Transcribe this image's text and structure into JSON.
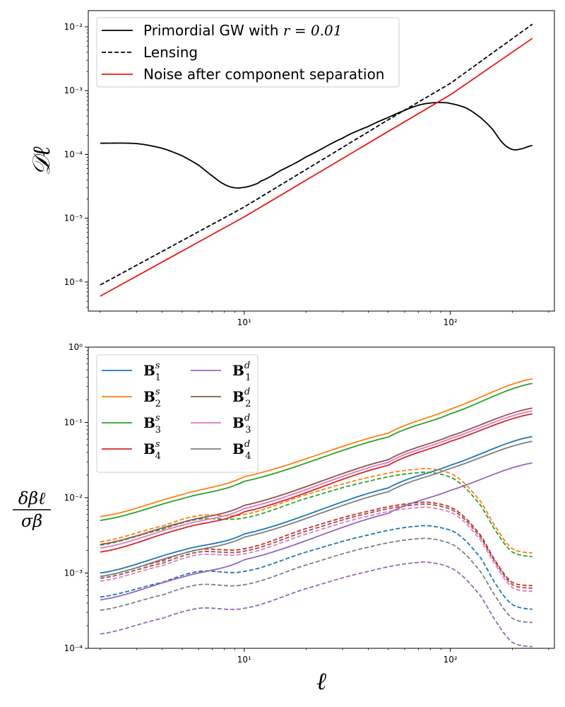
{
  "chart_data": [
    {
      "type": "line",
      "xscale": "log",
      "yscale": "log",
      "xlim": [
        1.75,
        320
      ],
      "ylim": [
        3.5e-07,
        0.018
      ],
      "xlabel": "",
      "ylabel": "𝒟ℓ",
      "x_ticks": [
        {
          "value": 10,
          "label": "10¹"
        },
        {
          "value": 100,
          "label": "10²"
        }
      ],
      "y_ticks": [
        {
          "value": 1e-06,
          "label": "10⁻⁶"
        },
        {
          "value": 1e-05,
          "label": "10⁻⁵"
        },
        {
          "value": 0.0001,
          "label": "10⁻⁴"
        },
        {
          "value": 0.001,
          "label": "10⁻³"
        },
        {
          "value": 0.01,
          "label": "10⁻²"
        }
      ],
      "legend_position": "top-left",
      "series": [
        {
          "name": "Primordial GW with r = 0.01",
          "legend_prefix": "Primordial GW with ",
          "legend_math": "r = 0.01",
          "color": "#000000",
          "dash": "solid",
          "points": [
            [
              2,
              0.00015
            ],
            [
              3,
              0.000148
            ],
            [
              4,
              0.000125
            ],
            [
              5,
              9.5e-05
            ],
            [
              6,
              6.8e-05
            ],
            [
              7,
              4.6e-05
            ],
            [
              8,
              3.4e-05
            ],
            [
              9,
              3e-05
            ],
            [
              10,
              3.05e-05
            ],
            [
              11,
              3.3e-05
            ],
            [
              12,
              3.8e-05
            ],
            [
              15,
              5.6e-05
            ],
            [
              20,
              9.2e-05
            ],
            [
              30,
              0.00018
            ],
            [
              40,
              0.000275
            ],
            [
              50,
              0.00038
            ],
            [
              60,
              0.00049
            ],
            [
              70,
              0.00059
            ],
            [
              80,
              0.00064
            ],
            [
              90,
              0.00065
            ],
            [
              100,
              0.00063
            ],
            [
              120,
              0.00053
            ],
            [
              140,
              0.00038
            ],
            [
              160,
              0.00025
            ],
            [
              180,
              0.00015
            ],
            [
              200,
              0.00012
            ],
            [
              220,
              0.000122
            ],
            [
              250,
              0.000138
            ]
          ]
        },
        {
          "name": "Lensing",
          "color": "#000000",
          "dash": "dashed",
          "points": [
            [
              2,
              9e-07
            ],
            [
              10,
              1.5e-05
            ],
            [
              50,
              0.00035
            ],
            [
              100,
              0.0013
            ],
            [
              250,
              0.011
            ]
          ]
        },
        {
          "name": "Noise after component separation",
          "color": "#e8170f",
          "dash": "solid",
          "points": [
            [
              2,
              6e-07
            ],
            [
              10,
              1.05e-05
            ],
            [
              50,
              0.00023
            ],
            [
              100,
              0.00086
            ],
            [
              250,
              0.0066
            ]
          ]
        }
      ]
    },
    {
      "type": "line",
      "xscale": "log",
      "yscale": "log",
      "xlim": [
        1.75,
        320
      ],
      "ylim": [
        0.0001,
        1
      ],
      "xlabel": "ℓ",
      "ylabel": "δβℓ/σβ",
      "ylabel_num": "δβℓ",
      "ylabel_den": "σβ",
      "x_ticks": [
        {
          "value": 10,
          "label": "10¹"
        },
        {
          "value": 100,
          "label": "10²"
        }
      ],
      "y_ticks": [
        {
          "value": 0.0001,
          "label": "10⁻⁴"
        },
        {
          "value": 0.001,
          "label": "10⁻³"
        },
        {
          "value": 0.01,
          "label": "10⁻²"
        },
        {
          "value": 0.1,
          "label": "10⁻¹"
        },
        {
          "value": 1,
          "label": "10⁰"
        }
      ],
      "legend_position": "top-left",
      "legend_columns": 2,
      "series": [
        {
          "name": "B₁ˢ",
          "base": "B",
          "sub": "1",
          "sup": "s",
          "color": "#1f77b4",
          "solid": [
            [
              2,
              0.001
            ],
            [
              5,
              0.002
            ],
            [
              10,
              0.0033
            ],
            [
              50,
              0.0135
            ],
            [
              100,
              0.027
            ],
            [
              250,
              0.065
            ]
          ],
          "dashed": [
            [
              2,
              0.00048
            ],
            [
              4,
              0.00075
            ],
            [
              6,
              0.00105
            ],
            [
              10,
              0.00105
            ],
            [
              20,
              0.0019
            ],
            [
              40,
              0.0032
            ],
            [
              70,
              0.0042
            ],
            [
              90,
              0.004
            ],
            [
              110,
              0.0032
            ],
            [
              140,
              0.0016
            ],
            [
              170,
              0.00065
            ],
            [
              200,
              0.00038
            ],
            [
              250,
              0.00033
            ]
          ]
        },
        {
          "name": "B₂ˢ",
          "base": "B",
          "sub": "2",
          "sup": "s",
          "color": "#ff7f0e",
          "solid": [
            [
              2,
              0.0056
            ],
            [
              5,
              0.011
            ],
            [
              10,
              0.019
            ],
            [
              50,
              0.072
            ],
            [
              100,
              0.15
            ],
            [
              250,
              0.38
            ]
          ],
          "dashed": [
            [
              2,
              0.0026
            ],
            [
              4,
              0.0042
            ],
            [
              6,
              0.0058
            ],
            [
              10,
              0.006
            ],
            [
              20,
              0.011
            ],
            [
              40,
              0.0185
            ],
            [
              70,
              0.024
            ],
            [
              90,
              0.023
            ],
            [
              110,
              0.018
            ],
            [
              140,
              0.009
            ],
            [
              170,
              0.0037
            ],
            [
              200,
              0.0021
            ],
            [
              250,
              0.00185
            ]
          ]
        },
        {
          "name": "B₃ˢ",
          "base": "B",
          "sub": "3",
          "sup": "s",
          "color": "#2ca02c",
          "solid": [
            [
              2,
              0.005
            ],
            [
              5,
              0.0097
            ],
            [
              10,
              0.0165
            ],
            [
              50,
              0.064
            ],
            [
              100,
              0.13
            ],
            [
              250,
              0.33
            ]
          ],
          "dashed": [
            [
              2,
              0.00235
            ],
            [
              4,
              0.0038
            ],
            [
              6,
              0.0052
            ],
            [
              10,
              0.0054
            ],
            [
              20,
              0.0098
            ],
            [
              40,
              0.0165
            ],
            [
              70,
              0.0215
            ],
            [
              90,
              0.0205
            ],
            [
              110,
              0.016
            ],
            [
              140,
              0.008
            ],
            [
              170,
              0.0033
            ],
            [
              200,
              0.0019
            ],
            [
              250,
              0.00165
            ]
          ]
        },
        {
          "name": "B₄ˢ",
          "base": "B",
          "sub": "4",
          "sup": "s",
          "color": "#d62728",
          "solid": [
            [
              2,
              0.0019
            ],
            [
              5,
              0.0039
            ],
            [
              10,
              0.0065
            ],
            [
              50,
              0.027
            ],
            [
              100,
              0.056
            ],
            [
              250,
              0.13
            ]
          ],
          "dashed": [
            [
              2,
              0.0009
            ],
            [
              4,
              0.00145
            ],
            [
              6,
              0.00205
            ],
            [
              10,
              0.0021
            ],
            [
              20,
              0.0039
            ],
            [
              40,
              0.0066
            ],
            [
              70,
              0.0086
            ],
            [
              90,
              0.0082
            ],
            [
              110,
              0.0064
            ],
            [
              140,
              0.0032
            ],
            [
              170,
              0.0013
            ],
            [
              200,
              0.00075
            ],
            [
              250,
              0.00068
            ]
          ]
        },
        {
          "name": "B₁ᵈ",
          "base": "B",
          "sub": "1",
          "sup": "d",
          "color": "#9467bd",
          "solid": [
            [
              2,
              0.00044
            ],
            [
              5,
              0.00088
            ],
            [
              10,
              0.0015
            ],
            [
              50,
              0.0062
            ],
            [
              100,
              0.0125
            ],
            [
              250,
              0.029
            ]
          ],
          "dashed": [
            [
              2,
              0.000155
            ],
            [
              4,
              0.00025
            ],
            [
              6,
              0.00034
            ],
            [
              10,
              0.00034
            ],
            [
              20,
              0.00062
            ],
            [
              40,
              0.00105
            ],
            [
              70,
              0.00138
            ],
            [
              90,
              0.0013
            ],
            [
              110,
              0.001
            ],
            [
              140,
              0.0005
            ],
            [
              170,
              0.00021
            ],
            [
              200,
              0.00012
            ],
            [
              250,
              0.000105
            ]
          ]
        },
        {
          "name": "B₂ᵈ",
          "base": "B",
          "sub": "2",
          "sup": "d",
          "color": "#8c564b",
          "solid": [
            [
              2,
              0.0024
            ],
            [
              5,
              0.0047
            ],
            [
              10,
              0.0079
            ],
            [
              50,
              0.032
            ],
            [
              100,
              0.066
            ],
            [
              250,
              0.155
            ]
          ],
          "dashed": [
            [
              2,
              0.00085
            ],
            [
              4,
              0.00135
            ],
            [
              6,
              0.0019
            ],
            [
              10,
              0.00195
            ],
            [
              20,
              0.0036
            ],
            [
              40,
              0.0062
            ],
            [
              70,
              0.0081
            ],
            [
              90,
              0.0077
            ],
            [
              110,
              0.006
            ],
            [
              140,
              0.003
            ],
            [
              170,
              0.00125
            ],
            [
              200,
              0.0007
            ],
            [
              250,
              0.00063
            ]
          ]
        },
        {
          "name": "B₃ᵈ",
          "base": "B",
          "sub": "3",
          "sup": "d",
          "color": "#e377c2",
          "solid": [
            [
              2,
              0.00215
            ],
            [
              5,
              0.0043
            ],
            [
              10,
              0.0072
            ],
            [
              50,
              0.0295
            ],
            [
              100,
              0.061
            ],
            [
              250,
              0.142
            ]
          ],
          "dashed": [
            [
              2,
              0.00078
            ],
            [
              4,
              0.00125
            ],
            [
              6,
              0.00175
            ],
            [
              10,
              0.0018
            ],
            [
              20,
              0.0033
            ],
            [
              40,
              0.0057
            ],
            [
              70,
              0.0074
            ],
            [
              90,
              0.007
            ],
            [
              110,
              0.0055
            ],
            [
              140,
              0.00275
            ],
            [
              170,
              0.00115
            ],
            [
              200,
              0.00064
            ],
            [
              250,
              0.00057
            ]
          ]
        },
        {
          "name": "B₄ᵈ",
          "base": "B",
          "sub": "4",
          "sup": "d",
          "color": "#7f7f7f",
          "solid": [
            [
              2,
              0.0009
            ],
            [
              5,
              0.0018
            ],
            [
              10,
              0.003
            ],
            [
              50,
              0.012
            ],
            [
              100,
              0.0245
            ],
            [
              250,
              0.056
            ]
          ],
          "dashed": [
            [
              2,
              0.00032
            ],
            [
              4,
              0.00051
            ],
            [
              6,
              0.0007
            ],
            [
              10,
              0.0007
            ],
            [
              20,
              0.00128
            ],
            [
              40,
              0.0022
            ],
            [
              70,
              0.00285
            ],
            [
              90,
              0.0027
            ],
            [
              110,
              0.0021
            ],
            [
              140,
              0.00105
            ],
            [
              170,
              0.00044
            ],
            [
              200,
              0.00025
            ],
            [
              250,
              0.00022
            ]
          ]
        }
      ]
    }
  ]
}
